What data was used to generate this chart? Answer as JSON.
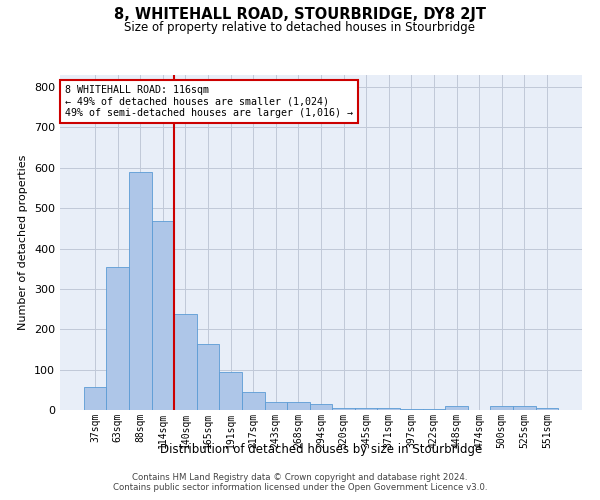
{
  "title": "8, WHITEHALL ROAD, STOURBRIDGE, DY8 2JT",
  "subtitle": "Size of property relative to detached houses in Stourbridge",
  "xlabel": "Distribution of detached houses by size in Stourbridge",
  "ylabel": "Number of detached properties",
  "categories": [
    "37sqm",
    "63sqm",
    "88sqm",
    "114sqm",
    "140sqm",
    "165sqm",
    "191sqm",
    "217sqm",
    "243sqm",
    "268sqm",
    "294sqm",
    "320sqm",
    "345sqm",
    "371sqm",
    "397sqm",
    "422sqm",
    "448sqm",
    "474sqm",
    "500sqm",
    "525sqm",
    "551sqm"
  ],
  "values": [
    57,
    355,
    590,
    468,
    237,
    163,
    93,
    45,
    20,
    20,
    14,
    6,
    5,
    4,
    3,
    2,
    9,
    0,
    10,
    9,
    5
  ],
  "bar_color": "#aec6e8",
  "bar_edgecolor": "#5b9bd5",
  "vline_x": 3.5,
  "vline_color": "#cc0000",
  "annotation_line1": "8 WHITEHALL ROAD: 116sqm",
  "annotation_line2": "← 49% of detached houses are smaller (1,024)",
  "annotation_line3": "49% of semi-detached houses are larger (1,016) →",
  "annotation_box_color": "#cc0000",
  "ylim": [
    0,
    830
  ],
  "yticks": [
    0,
    100,
    200,
    300,
    400,
    500,
    600,
    700,
    800
  ],
  "grid_color": "#c0c8d8",
  "background_color": "#e8eef8",
  "footer_line1": "Contains HM Land Registry data © Crown copyright and database right 2024.",
  "footer_line2": "Contains public sector information licensed under the Open Government Licence v3.0."
}
